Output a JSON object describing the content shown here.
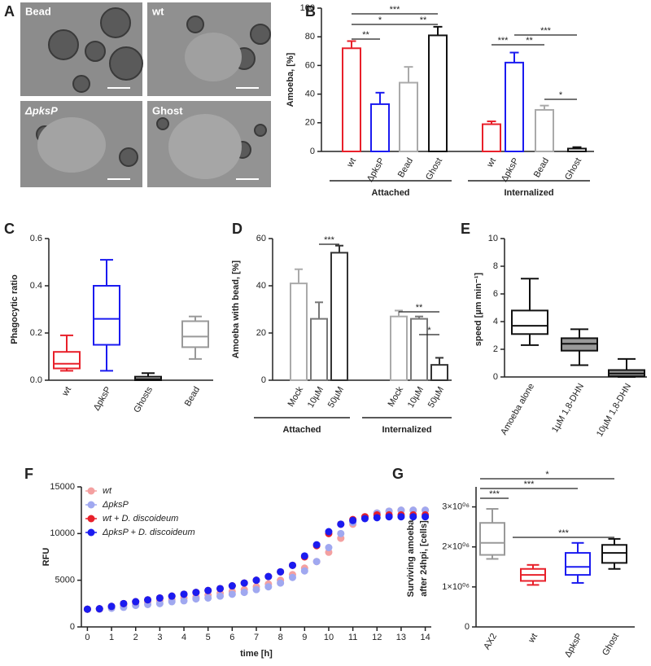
{
  "panel_a": {
    "panel": "A",
    "images": [
      "Bead",
      "wt",
      "ΔpksP",
      "Ghost"
    ]
  },
  "chart_data": [
    {
      "type": "bar",
      "panel": "B",
      "y_label": "Amoeba, [%]",
      "categories": [
        "wt",
        "ΔpksP",
        "Bead",
        "Ghost",
        "wt",
        "ΔpksP",
        "Bead",
        "Ghost"
      ],
      "group_labels": [
        "Attached",
        "Internalized"
      ],
      "values": [
        72,
        33,
        48,
        81,
        19,
        62,
        29,
        2
      ],
      "errors": [
        5,
        8,
        11,
        6,
        2,
        7,
        3,
        1
      ],
      "colors": [
        "#e8202a",
        "#1b1bf0",
        "#aaaaaa",
        "#111111",
        "#e8202a",
        "#1b1bf0",
        "#aaaaaa",
        "#111111"
      ],
      "ylim": [
        0,
        100
      ],
      "yticks": [
        0,
        20,
        40,
        60,
        80,
        100
      ],
      "annotations": [
        "**",
        "*",
        "**",
        "***",
        "***",
        "**",
        "***",
        "*"
      ]
    },
    {
      "type": "box",
      "panel": "C",
      "y_label": "Phagocytic ratio",
      "categories": [
        "wt",
        "ΔpksP",
        "Ghosts",
        "Bead"
      ],
      "boxes": [
        {
          "min": 0.04,
          "q1": 0.05,
          "median": 0.07,
          "q3": 0.12,
          "max": 0.19
        },
        {
          "min": 0.04,
          "q1": 0.15,
          "median": 0.26,
          "q3": 0.4,
          "max": 0.51
        },
        {
          "min": 0.0,
          "q1": 0.0,
          "median": 0.005,
          "q3": 0.015,
          "max": 0.03
        },
        {
          "min": 0.09,
          "q1": 0.14,
          "median": 0.185,
          "q3": 0.25,
          "max": 0.27
        }
      ],
      "colors": [
        "#e8202a",
        "#1b1bf0",
        "#111111",
        "#999999"
      ],
      "ylim": [
        0,
        0.6
      ],
      "yticks": [
        {
          "value": 0,
          "label": "0.0"
        },
        {
          "value": 0.2,
          "label": "0.2"
        },
        {
          "value": 0.4,
          "label": "0.4"
        },
        {
          "value": 0.6,
          "label": "0.6"
        }
      ]
    },
    {
      "type": "bar",
      "panel": "D",
      "y_label": "Amoeba with bead, [%]",
      "categories": [
        "Mock",
        "10µM",
        "50µM",
        "Mock",
        "10µM",
        "50µM"
      ],
      "group_labels": [
        "Attached",
        "Internalized"
      ],
      "values": [
        41,
        26,
        54,
        27,
        26,
        6.5
      ],
      "errors": [
        6,
        7,
        3,
        2.5,
        1,
        3
      ],
      "colors": [
        "#aaaaaa",
        "#777777",
        "#333333",
        "#aaaaaa",
        "#777777",
        "#333333"
      ],
      "ylim": [
        0,
        60
      ],
      "yticks": [
        0,
        20,
        40,
        60
      ],
      "annotations": [
        "***",
        "**",
        "*"
      ]
    },
    {
      "type": "box",
      "panel": "E",
      "y_label": "speed [µm min⁻¹]",
      "categories": [
        "Amoeba alone",
        "1µM 1,8-DHN",
        "10µM 1,8-DHN"
      ],
      "boxes": [
        {
          "min": 2.3,
          "q1": 3.1,
          "median": 3.7,
          "q3": 4.8,
          "max": 7.1
        },
        {
          "min": 0.85,
          "q1": 1.9,
          "median": 2.4,
          "q3": 2.8,
          "max": 3.45
        },
        {
          "min": 0,
          "q1": 0.05,
          "median": 0.25,
          "q3": 0.5,
          "max": 1.3
        }
      ],
      "colors": [
        "#111111",
        "#111111",
        "#111111"
      ],
      "box_fills": [
        "#ffffff",
        "#999999",
        "#999999"
      ],
      "ylim": [
        0,
        10
      ],
      "yticks": [
        0,
        2,
        4,
        6,
        8,
        10
      ]
    },
    {
      "type": "scatter",
      "panel": "F",
      "x_label": "time [h]",
      "y_label": "RFU",
      "x": [
        0,
        0.5,
        1,
        1.5,
        2,
        2.5,
        3,
        3.5,
        4,
        4.5,
        5,
        5.5,
        6,
        6.5,
        7,
        7.5,
        8,
        8.5,
        9,
        9.5,
        10,
        10.5,
        11,
        11.5,
        12,
        12.5,
        13,
        13.5,
        14
      ],
      "series": [
        {
          "name": "wt",
          "color": "#f4a0a0",
          "values": [
            1900,
            1900,
            2100,
            2300,
            2500,
            2600,
            2800,
            2900,
            3100,
            3200,
            3400,
            3600,
            3800,
            4000,
            4300,
            4600,
            5000,
            5600,
            6300,
            7000,
            8000,
            9500,
            11000,
            11800,
            12200,
            12400,
            12500,
            12500,
            12500
          ]
        },
        {
          "name": "ΔpksP",
          "color": "#a0a8f0",
          "values": [
            1900,
            1900,
            2000,
            2100,
            2300,
            2400,
            2500,
            2700,
            2800,
            3000,
            3100,
            3300,
            3500,
            3700,
            4000,
            4300,
            4700,
            5300,
            6000,
            7000,
            8500,
            10000,
            11200,
            11800,
            12200,
            12400,
            12500,
            12500,
            12500
          ]
        },
        {
          "name": "wt + D. discoideum",
          "color": "#e8202a",
          "values": [
            1900,
            1950,
            2200,
            2500,
            2700,
            2900,
            3100,
            3300,
            3500,
            3700,
            3900,
            4100,
            4400,
            4700,
            5000,
            5400,
            5900,
            6600,
            7500,
            8700,
            10000,
            11000,
            11500,
            11800,
            12000,
            12000,
            12000,
            12000,
            12000
          ]
        },
        {
          "name": "ΔpksP + D. discoideum",
          "color": "#1b1bf0",
          "values": [
            1900,
            1950,
            2200,
            2500,
            2700,
            2900,
            3100,
            3300,
            3500,
            3700,
            3900,
            4100,
            4400,
            4700,
            5000,
            5400,
            5900,
            6600,
            7600,
            8800,
            10200,
            11000,
            11400,
            11600,
            11700,
            11800,
            11800,
            11800,
            11800
          ]
        }
      ],
      "xlim": [
        -0.25,
        14.25
      ],
      "xticks": [
        0,
        1,
        2,
        3,
        4,
        5,
        6,
        7,
        8,
        9,
        10,
        11,
        12,
        13,
        14
      ],
      "ylim": [
        0,
        15000
      ],
      "yticks": [
        0,
        5000,
        10000,
        15000
      ]
    },
    {
      "type": "box",
      "panel": "G",
      "y_label": [
        "Surviving amoeba",
        "after 24hpi, [cells]"
      ],
      "categories": [
        "AX2",
        "wt",
        "ΔpksP",
        "Ghost"
      ],
      "boxes": [
        {
          "min": 1700000,
          "q1": 1800000,
          "median": 2100000,
          "q3": 2600000,
          "max": 2950000
        },
        {
          "min": 1050000,
          "q1": 1150000,
          "median": 1300000,
          "q3": 1450000,
          "max": 1550000
        },
        {
          "min": 1100000,
          "q1": 1300000,
          "median": 1500000,
          "q3": 1850000,
          "max": 2100000
        },
        {
          "min": 1450000,
          "q1": 1600000,
          "median": 1850000,
          "q3": 2050000,
          "max": 2200000
        }
      ],
      "colors": [
        "#999999",
        "#e8202a",
        "#1b1bf0",
        "#111111"
      ],
      "ylim": [
        0,
        3500000
      ],
      "yticks": [
        0,
        {
          "value": 1000000,
          "label": "1×10⁰⁶"
        },
        {
          "value": 2000000,
          "label": "2×10⁰⁶"
        },
        {
          "value": 3000000,
          "label": "3×10⁰⁶"
        }
      ],
      "annotations": [
        "*",
        "***",
        "***",
        "***"
      ]
    }
  ]
}
